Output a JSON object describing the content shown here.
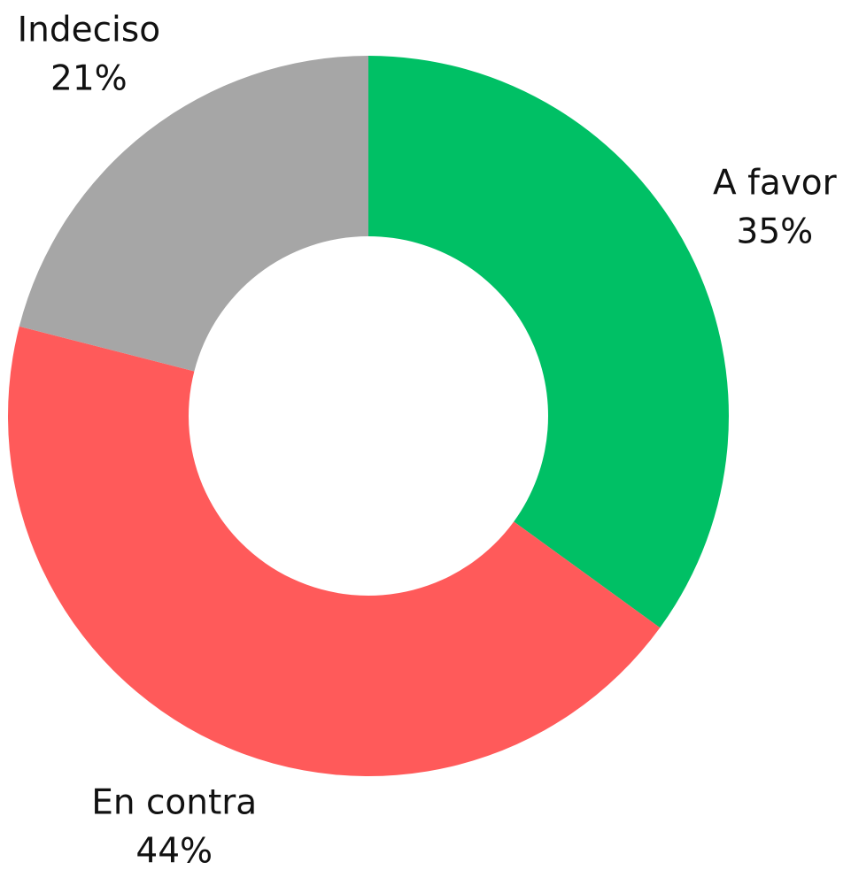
{
  "chart_data": {
    "type": "donut",
    "categories": [
      "A favor",
      "En contra",
      "Indeciso"
    ],
    "values": [
      35,
      44,
      21
    ],
    "value_labels": [
      "35%",
      "44%",
      "21%"
    ],
    "colors": [
      "#00c065",
      "#ff5a5a",
      "#a6a6a6"
    ]
  }
}
